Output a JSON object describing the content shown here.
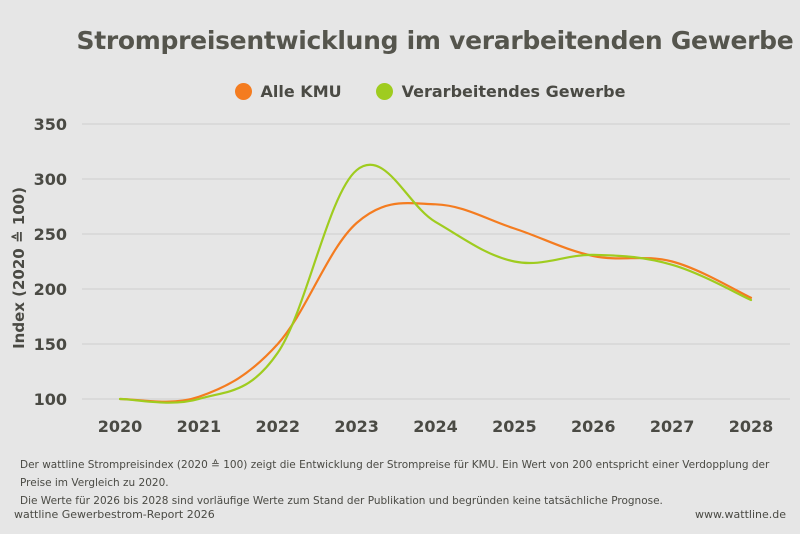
{
  "chart_data": {
    "type": "line",
    "title": "Strompreisentwicklung im verarbeitenden Gewerbe",
    "ylabel": "Index (2020 ≙ 100)",
    "xlabel": "",
    "x": [
      "2020",
      "2021",
      "2022",
      "2023",
      "2024",
      "2025",
      "2026",
      "2027",
      "2028"
    ],
    "yticks": [
      100,
      150,
      200,
      250,
      300,
      350
    ],
    "ylim": [
      100,
      350
    ],
    "grid": true,
    "legend_position": "top-center",
    "series": [
      {
        "name": "Alle KMU",
        "color": "#f47c20",
        "values": [
          100,
          102,
          150,
          260,
          277,
          255,
          230,
          225,
          192
        ]
      },
      {
        "name": "Verarbeitendes Gewerbe",
        "color": "#9fcc1f",
        "values": [
          100,
          100,
          142,
          308,
          261,
          225,
          231,
          222,
          190
        ]
      }
    ]
  },
  "footnote": {
    "line1": "Der wattline Strompreisindex (2020 ≙ 100) zeigt die Entwicklung der Strompreise für KMU. Ein Wert von 200 entspricht einer Verdopplung der Preise im Vergleich zu 2020.",
    "line2": "Die Werte für 2026 bis 2028 sind vorläufige Werte zum Stand der Publikation und begründen keine tatsächliche Prognose."
  },
  "footer": {
    "source": "wattline Gewerbestrom-Report 2026",
    "url": "www.wattline.de"
  }
}
